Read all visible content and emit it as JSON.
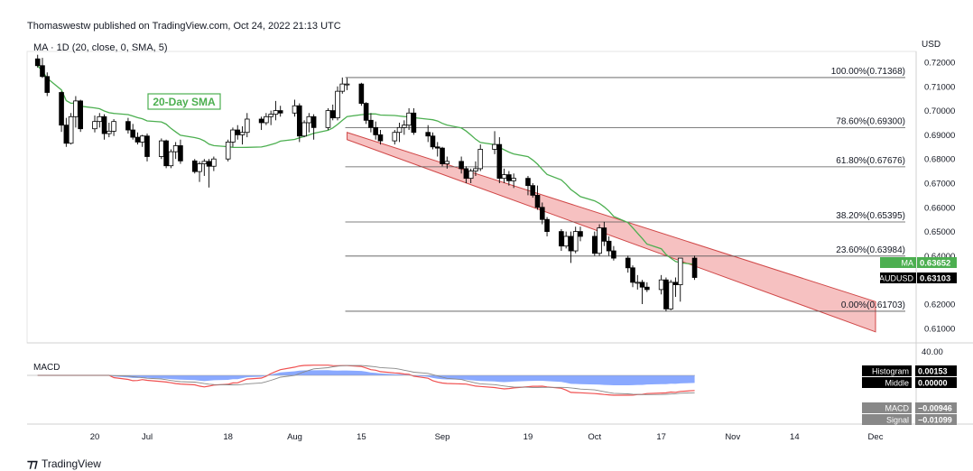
{
  "header": {
    "published": "Thomaswestw published on TradingView.com, Oct 24, 2022 21:13 UTC",
    "indicator": "MA · 1D (20, close, 0, SMA, 5)",
    "currency": "USD"
  },
  "footer": {
    "brand": "TradingView",
    "logo": "tradingview-logo"
  },
  "colors": {
    "up": "#ffffff",
    "down": "#000000",
    "sma": "#4caf50",
    "channel_fill": "#f4b6b6",
    "channel_edge": "#d04848",
    "fib_line": "#555555",
    "macd_red": "#f05050",
    "macd_blue": "#2962ff",
    "ma_badge": "#4caf50",
    "price_badge": "#000000"
  },
  "chart_data": [
    {
      "type": "candlestick",
      "symbol": "AUDUSD",
      "timeframe": "1D",
      "ylim": [
        0.605,
        0.725
      ],
      "y_ticks": [
        "0.72000",
        "0.71000",
        "0.70000",
        "0.69000",
        "0.68000",
        "0.67000",
        "0.66000",
        "0.65000",
        "0.64000",
        "0.63000",
        "0.62000",
        "0.61000"
      ],
      "y_tick_values": [
        0.72,
        0.71,
        0.7,
        0.69,
        0.68,
        0.67,
        0.66,
        0.65,
        0.64,
        0.63,
        0.62,
        0.61
      ],
      "x_ticks": [
        "20",
        "Jul",
        "18",
        "Aug",
        "15",
        "Sep",
        "19",
        "Oct",
        "17",
        "Nov",
        "14",
        "Dec"
      ],
      "x_tick_dates": [
        "2022-06-20",
        "2022-07-01",
        "2022-07-18",
        "2022-08-01",
        "2022-08-15",
        "2022-09-01",
        "2022-09-19",
        "2022-10-03",
        "2022-10-17",
        "2022-11-01",
        "2022-11-14",
        "2022-12-01"
      ],
      "ohlc": [
        [
          "2022-06-08",
          0.7214,
          0.7231,
          0.7178,
          0.7186
        ],
        [
          "2022-06-09",
          0.7186,
          0.7218,
          0.7135,
          0.7141
        ],
        [
          "2022-06-10",
          0.7141,
          0.7158,
          0.706,
          0.7075
        ],
        [
          "2022-06-13",
          0.7075,
          0.708,
          0.6912,
          0.694
        ],
        [
          "2022-06-14",
          0.694,
          0.697,
          0.685,
          0.6865
        ],
        [
          "2022-06-15",
          0.6865,
          0.699,
          0.686,
          0.6975
        ],
        [
          "2022-06-16",
          0.6975,
          0.706,
          0.693,
          0.704
        ],
        [
          "2022-06-17",
          0.704,
          0.7045,
          0.6912,
          0.6925
        ],
        [
          "2022-06-20",
          0.6925,
          0.698,
          0.691,
          0.6955
        ],
        [
          "2022-06-21",
          0.6955,
          0.699,
          0.693,
          0.6975
        ],
        [
          "2022-06-22",
          0.6975,
          0.6985,
          0.688,
          0.6905
        ],
        [
          "2022-06-23",
          0.6905,
          0.695,
          0.689,
          0.6915
        ],
        [
          "2022-06-24",
          0.6915,
          0.6965,
          0.6895,
          0.6955
        ],
        [
          "2022-06-27",
          0.6955,
          0.697,
          0.6905,
          0.692
        ],
        [
          "2022-06-28",
          0.692,
          0.6945,
          0.688,
          0.689
        ],
        [
          "2022-06-29",
          0.689,
          0.691,
          0.686,
          0.687
        ],
        [
          "2022-06-30",
          0.687,
          0.69,
          0.685,
          0.6895
        ],
        [
          "2022-07-01",
          0.6895,
          0.6905,
          0.679,
          0.681
        ],
        [
          "2022-07-04",
          0.681,
          0.6885,
          0.68,
          0.6875
        ],
        [
          "2022-07-05",
          0.6875,
          0.688,
          0.6762,
          0.6772
        ],
        [
          "2022-07-06",
          0.6772,
          0.684,
          0.6762,
          0.683
        ],
        [
          "2022-07-07",
          0.683,
          0.687,
          0.68,
          0.6855
        ],
        [
          "2022-07-08",
          0.6855,
          0.688,
          0.678,
          0.6792
        ],
        [
          "2022-07-11",
          0.6792,
          0.68,
          0.674,
          0.6748
        ],
        [
          "2022-07-12",
          0.6748,
          0.679,
          0.6705,
          0.678
        ],
        [
          "2022-07-13",
          0.678,
          0.68,
          0.673,
          0.679
        ],
        [
          "2022-07-14",
          0.679,
          0.68,
          0.6682,
          0.677
        ],
        [
          "2022-07-15",
          0.677,
          0.681,
          0.675,
          0.68
        ],
        [
          "2022-07-18",
          0.68,
          0.688,
          0.679,
          0.687
        ],
        [
          "2022-07-19",
          0.687,
          0.693,
          0.685,
          0.692
        ],
        [
          "2022-07-20",
          0.692,
          0.694,
          0.688,
          0.69
        ],
        [
          "2022-07-21",
          0.69,
          0.6935,
          0.686,
          0.691
        ],
        [
          "2022-07-22",
          0.691,
          0.699,
          0.689,
          0.6965
        ],
        [
          "2022-07-25",
          0.6965,
          0.6975,
          0.692,
          0.695
        ],
        [
          "2022-07-26",
          0.695,
          0.699,
          0.694,
          0.6975
        ],
        [
          "2022-07-27",
          0.6975,
          0.7,
          0.694,
          0.6985
        ],
        [
          "2022-07-28",
          0.6985,
          0.704,
          0.696,
          0.7
        ],
        [
          "2022-07-29",
          0.7,
          0.702,
          0.6975,
          0.699
        ],
        [
          "2022-08-01",
          0.699,
          0.7045,
          0.6975,
          0.702
        ],
        [
          "2022-08-02",
          0.702,
          0.703,
          0.687,
          0.6895
        ],
        [
          "2022-08-03",
          0.6895,
          0.696,
          0.689,
          0.695
        ],
        [
          "2022-08-04",
          0.695,
          0.699,
          0.691,
          0.6975
        ],
        [
          "2022-08-05",
          0.6975,
          0.6985,
          0.688,
          0.693
        ],
        [
          "2022-08-08",
          0.693,
          0.701,
          0.692,
          0.7
        ],
        [
          "2022-08-09",
          0.7,
          0.7025,
          0.696,
          0.697
        ],
        [
          "2022-08-10",
          0.697,
          0.71,
          0.696,
          0.708
        ],
        [
          "2022-08-11",
          0.708,
          0.7137,
          0.707,
          0.711
        ],
        [
          "2022-08-12",
          0.711,
          0.7135,
          0.7085,
          0.711
        ],
        [
          "2022-08-15",
          0.711,
          0.7115,
          0.702,
          0.703
        ],
        [
          "2022-08-16",
          0.703,
          0.7035,
          0.6945,
          0.696
        ],
        [
          "2022-08-17",
          0.696,
          0.699,
          0.691,
          0.693
        ],
        [
          "2022-08-18",
          0.693,
          0.6955,
          0.688,
          0.69
        ],
        [
          "2022-08-19",
          0.69,
          0.692,
          0.686,
          0.6875
        ],
        [
          "2022-08-22",
          0.6875,
          0.692,
          0.686,
          0.691
        ],
        [
          "2022-08-23",
          0.691,
          0.695,
          0.687,
          0.693
        ],
        [
          "2022-08-24",
          0.693,
          0.696,
          0.69,
          0.694
        ],
        [
          "2022-08-25",
          0.694,
          0.701,
          0.692,
          0.699
        ],
        [
          "2022-08-26",
          0.699,
          0.701,
          0.69,
          0.691
        ],
        [
          "2022-08-29",
          0.691,
          0.694,
          0.687,
          0.6895
        ],
        [
          "2022-08-30",
          0.6895,
          0.691,
          0.684,
          0.685
        ],
        [
          "2022-08-31",
          0.685,
          0.687,
          0.681,
          0.6845
        ],
        [
          "2022-09-01",
          0.6845,
          0.685,
          0.677,
          0.678
        ],
        [
          "2022-09-02",
          0.678,
          0.681,
          0.676,
          0.679
        ],
        [
          "2022-09-05",
          0.679,
          0.681,
          0.674,
          0.676
        ],
        [
          "2022-09-06",
          0.676,
          0.677,
          0.67,
          0.672
        ],
        [
          "2022-09-07",
          0.672,
          0.676,
          0.67,
          0.675
        ],
        [
          "2022-09-08",
          0.675,
          0.679,
          0.673,
          0.676
        ],
        [
          "2022-09-09",
          0.676,
          0.686,
          0.675,
          0.684
        ],
        [
          "2022-09-12",
          0.684,
          0.6915,
          0.682,
          0.686
        ],
        [
          "2022-09-13",
          0.686,
          0.689,
          0.67,
          0.672
        ],
        [
          "2022-09-14",
          0.672,
          0.676,
          0.67,
          0.6735
        ],
        [
          "2022-09-15",
          0.6735,
          0.675,
          0.669,
          0.671
        ],
        [
          "2022-09-16",
          0.671,
          0.674,
          0.668,
          0.672
        ],
        [
          "2022-09-19",
          0.672,
          0.673,
          0.665,
          0.669
        ],
        [
          "2022-09-20",
          0.669,
          0.67,
          0.664,
          0.665
        ],
        [
          "2022-09-21",
          0.665,
          0.669,
          0.659,
          0.66
        ],
        [
          "2022-09-22",
          0.66,
          0.662,
          0.653,
          0.655
        ],
        [
          "2022-09-23",
          0.655,
          0.656,
          0.648,
          0.65
        ],
        [
          "2022-09-26",
          0.65,
          0.651,
          0.642,
          0.644
        ],
        [
          "2022-09-27",
          0.644,
          0.65,
          0.643,
          0.648
        ],
        [
          "2022-09-28",
          0.648,
          0.65,
          0.637,
          0.642
        ],
        [
          "2022-09-29",
          0.642,
          0.652,
          0.641,
          0.65
        ],
        [
          "2022-09-30",
          0.65,
          0.652,
          0.646,
          0.648
        ],
        [
          "2022-10-03",
          0.648,
          0.65,
          0.64,
          0.641
        ],
        [
          "2022-10-04",
          0.641,
          0.653,
          0.64,
          0.6515
        ],
        [
          "2022-10-05",
          0.6515,
          0.654,
          0.644,
          0.646
        ],
        [
          "2022-10-06",
          0.646,
          0.648,
          0.64,
          0.642
        ],
        [
          "2022-10-07",
          0.642,
          0.644,
          0.638,
          0.639
        ],
        [
          "2022-10-10",
          0.639,
          0.64,
          0.633,
          0.635
        ],
        [
          "2022-10-11",
          0.635,
          0.636,
          0.627,
          0.629
        ],
        [
          "2022-10-12",
          0.629,
          0.632,
          0.626,
          0.629
        ],
        [
          "2022-10-13",
          0.629,
          0.63,
          0.62,
          0.627
        ],
        [
          "2022-10-14",
          0.627,
          0.629,
          0.625,
          0.626
        ],
        [
          "2022-10-17",
          0.626,
          0.632,
          0.624,
          0.63
        ],
        [
          "2022-10-18",
          0.63,
          0.631,
          0.617,
          0.618
        ],
        [
          "2022-10-19",
          0.618,
          0.63,
          0.6175,
          0.629
        ],
        [
          "2022-10-20",
          0.629,
          0.631,
          0.623,
          0.628
        ],
        [
          "2022-10-21",
          0.628,
          0.638,
          0.621,
          0.639
        ],
        [
          "2022-10-24",
          0.639,
          0.64,
          0.63,
          0.631
        ]
      ],
      "sma_label": "20-Day SMA",
      "sma_period": 20,
      "fibonacci": [
        {
          "label": "100.00%(0.71368)",
          "price": 0.71368
        },
        {
          "label": "78.60%(0.69300)",
          "price": 0.693
        },
        {
          "label": "61.80%(0.67676)",
          "price": 0.67676
        },
        {
          "label": "38.20%(0.65395)",
          "price": 0.65395
        },
        {
          "label": "23.60%(0.63984)",
          "price": 0.63984
        },
        {
          "label": "0.00%(0.61703)",
          "price": 0.61703
        }
      ],
      "fib_start_date": "2022-08-12",
      "channel": {
        "upper": [
          [
            "2022-08-12",
            0.691
          ],
          [
            "2022-12-01",
            0.621
          ]
        ],
        "lower": [
          [
            "2022-08-12",
            0.688
          ],
          [
            "2022-12-01",
            0.6085
          ]
        ]
      },
      "last_labels": [
        {
          "name": "MA",
          "value": "0.63652",
          "price": 0.63652
        },
        {
          "name": "AUDUSD",
          "value": "0.63103",
          "price": 0.63103
        }
      ],
      "top_value_label": "40.00"
    },
    {
      "type": "macd",
      "title": "MACD",
      "legend": [
        {
          "name": "Histogram",
          "value": "0.00153"
        },
        {
          "name": "Middle",
          "value": "0.00000"
        },
        {
          "name": "MACD",
          "value": "−0.00946"
        },
        {
          "name": "Signal",
          "value": "−0.01099"
        }
      ]
    }
  ]
}
